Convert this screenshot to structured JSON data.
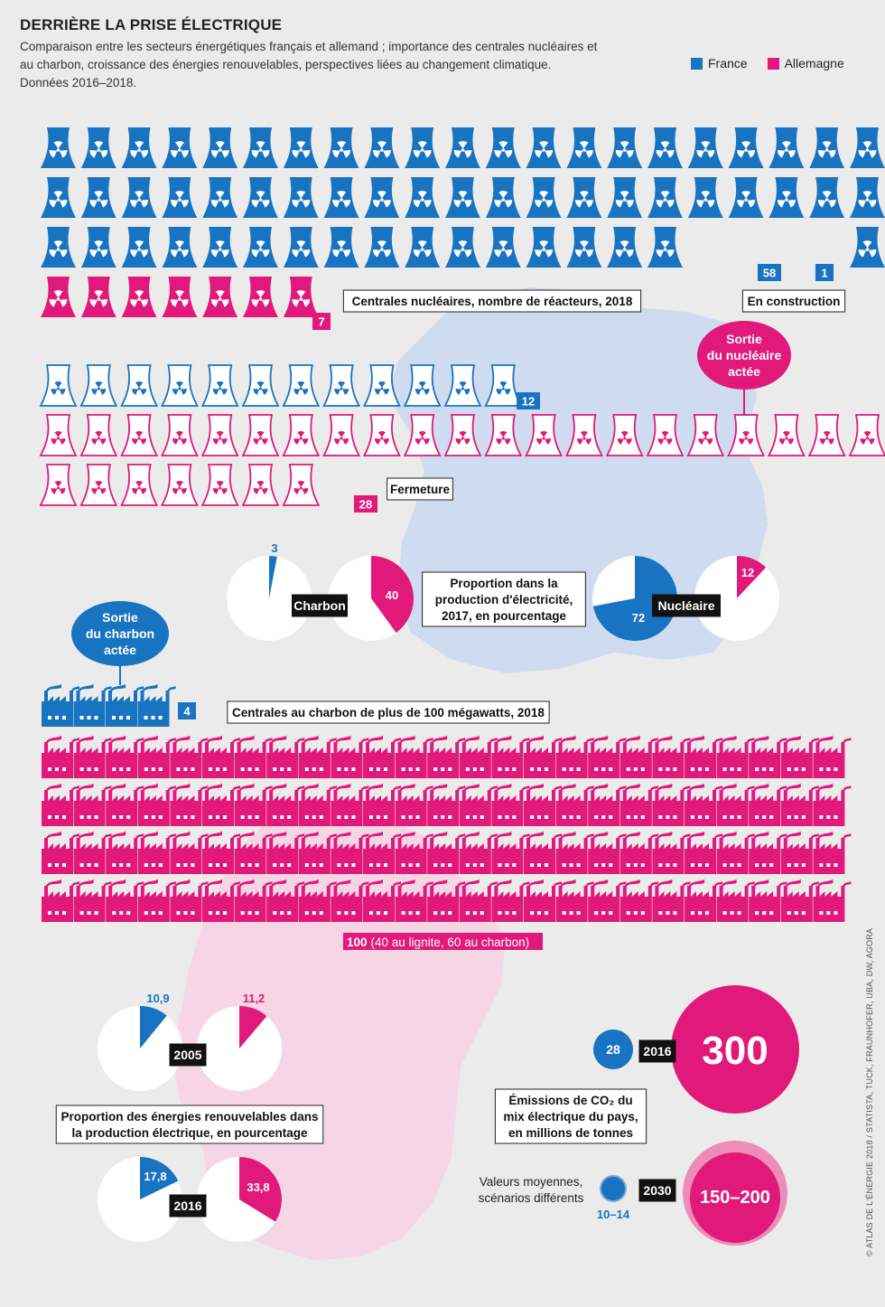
{
  "title": "DERRIÈRE LA PRISE ÉLECTRIQUE",
  "subtitle": "Comparaison entre les secteurs énergétiques français et allemand ; importance des centrales nucléaires et au charbon, croissance des énergies renouvelables, perspectives liées au changement climatique. Données 2016–2018.",
  "legend": [
    {
      "name": "France",
      "color": "#1874c1"
    },
    {
      "name": "Allemagne",
      "color": "#e1197a"
    }
  ],
  "colors": {
    "france": "#1874c1",
    "germany": "#e1197a",
    "map_france": "#cfdcf0",
    "map_germany": "#f6d6e4",
    "background": "#ebebeb"
  },
  "credit": "© ATLAS DE L'ÉNERGIE 2018 / STATISTA, TUCK, FRAUNHOFER, UBA, DW, AGORA",
  "chart_data": [
    {
      "type": "pictogram",
      "icon": "reactor-icon",
      "title": "Centrales nucléaires, nombre de réacteurs, 2018",
      "series": [
        {
          "name": "France",
          "value": 58,
          "label": "58"
        },
        {
          "name": "Allemagne",
          "value": 7,
          "label": "7"
        },
        {
          "name": "En construction",
          "value": 1,
          "label": "1"
        }
      ]
    },
    {
      "type": "pictogram",
      "icon": "reactor-outline-icon",
      "title": "Fermeture",
      "series": [
        {
          "name": "France",
          "value": 12,
          "label": "12"
        },
        {
          "name": "Allemagne",
          "value": 28,
          "label": "28"
        }
      ],
      "annotation": "Sortie du nucléaire actée"
    },
    {
      "type": "pie",
      "title": "Proportion dans la production d'électricité, 2017, en pourcentage",
      "groups": [
        {
          "name": "Charbon",
          "values": [
            {
              "country": "France",
              "value": 3,
              "label": "3"
            },
            {
              "country": "Allemagne",
              "value": 40,
              "label": "40"
            }
          ]
        },
        {
          "name": "Nucléaire",
          "values": [
            {
              "country": "France",
              "value": 72,
              "label": "72"
            },
            {
              "country": "Allemagne",
              "value": 12,
              "label": "12"
            }
          ]
        }
      ]
    },
    {
      "type": "pictogram",
      "icon": "factory-icon",
      "title": "Centrales au charbon de plus de 100 mégawatts, 2018",
      "series": [
        {
          "name": "France",
          "value": 4,
          "label": "4"
        },
        {
          "name": "Allemagne",
          "value": 100,
          "label": "100",
          "detail": "(40 au lignite, 60 au charbon)"
        }
      ],
      "annotation": "Sortie du charbon actée"
    },
    {
      "type": "pie",
      "title": "Proportion des énergies renouvelables dans la production électrique, en pourcentage",
      "groups": [
        {
          "name": "2005",
          "values": [
            {
              "country": "France",
              "value": 10.9,
              "label": "10,9"
            },
            {
              "country": "Allemagne",
              "value": 11.2,
              "label": "11,2"
            }
          ]
        },
        {
          "name": "2016",
          "values": [
            {
              "country": "France",
              "value": 17.8,
              "label": "17,8"
            },
            {
              "country": "Allemagne",
              "value": 33.8,
              "label": "33,8"
            }
          ]
        }
      ]
    },
    {
      "type": "bubble",
      "title": "Émissions de CO₂ du mix électrique du pays, en millions de tonnes",
      "note": "Valeurs moyennes, scénarios différents",
      "groups": [
        {
          "name": "2016",
          "values": [
            {
              "country": "France",
              "value": 28,
              "label": "28"
            },
            {
              "country": "Allemagne",
              "value": 300,
              "label": "300"
            }
          ]
        },
        {
          "name": "2030",
          "values": [
            {
              "country": "France",
              "value": [
                10,
                14
              ],
              "label": "10–14"
            },
            {
              "country": "Allemagne",
              "value": [
                150,
                200
              ],
              "label": "150–200"
            }
          ]
        }
      ]
    }
  ]
}
